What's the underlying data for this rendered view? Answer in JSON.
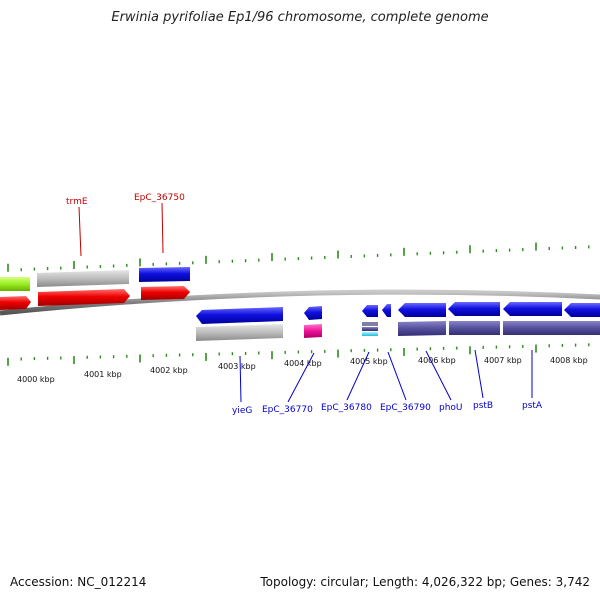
{
  "title": "Erwinia pyrifoliae Ep1/96 chromosome, complete genome",
  "footer": {
    "accession": "Accession: NC_012214",
    "summary": "Topology: circular; Length: 4,026,322 bp; Genes: 3,742"
  },
  "colors": {
    "tick": "#2e8b1f",
    "top_label": "#c00000",
    "bottom_label": "#0000cc",
    "leader_top": "#c00000",
    "leader_bottom": "#0000cc",
    "backbone": "#808080"
  },
  "ticks": [
    {
      "label": "4000 kbp"
    },
    {
      "label": "4001 kbp"
    },
    {
      "label": "4002 kbp"
    },
    {
      "label": "4003 kbp"
    },
    {
      "label": "4004 kbp"
    },
    {
      "label": "4005 kbp"
    },
    {
      "label": "4006 kbp"
    },
    {
      "label": "4007 kbp"
    },
    {
      "label": "4008 kbp"
    }
  ],
  "gene_labels_top": [
    "trmE",
    "EpC_36750"
  ],
  "gene_labels_bottom": [
    "yieG",
    "EpC_36770",
    "EpC_36780",
    "EpC_36790",
    "phoU",
    "pstB",
    "pstA"
  ]
}
